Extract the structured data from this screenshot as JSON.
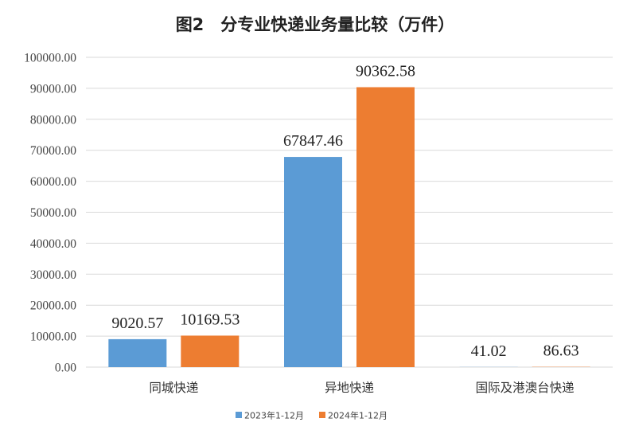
{
  "chart_data": {
    "type": "bar",
    "title": "图2　分专业快递业务量比较（万件）",
    "categories": [
      "同城快递",
      "异地快递",
      "国际及港澳台快递"
    ],
    "series": [
      {
        "name": "2023年1-12月",
        "values": [
          9020.57,
          67847.46,
          41.02
        ],
        "labels": [
          "9020.57",
          "67847.46",
          "41.02"
        ]
      },
      {
        "name": "2024年1-12月",
        "values": [
          10169.53,
          90362.58,
          86.63
        ],
        "labels": [
          "10169.53",
          "90362.58",
          "86.63"
        ]
      }
    ],
    "ylim": [
      0,
      100000
    ],
    "yticks": [
      "0.00",
      "10000.00",
      "20000.00",
      "30000.00",
      "40000.00",
      "50000.00",
      "60000.00",
      "70000.00",
      "80000.00",
      "90000.00",
      "100000.00"
    ],
    "grid": true,
    "legend_position": "bottom",
    "colors": [
      "#5b9bd5",
      "#ed7d31"
    ]
  }
}
